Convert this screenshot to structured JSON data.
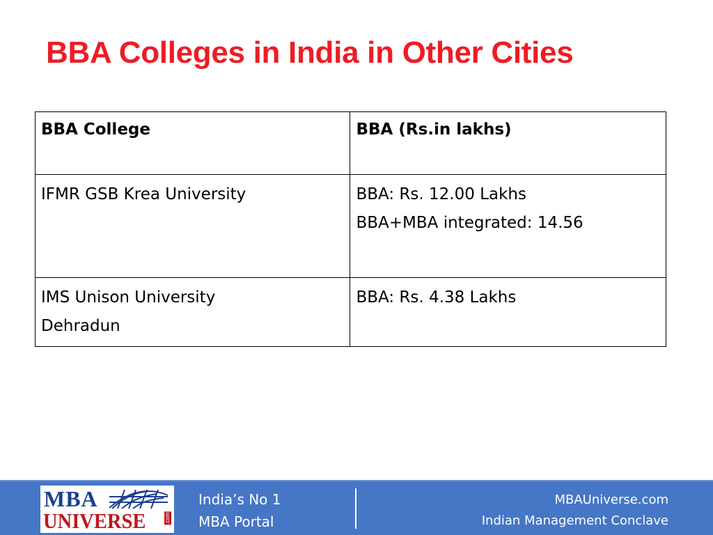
{
  "slide": {
    "title": "BBA Colleges in India in Other Cities"
  },
  "table": {
    "headers": [
      "BBA College",
      "BBA (Rs.in lakhs)"
    ],
    "rows": [
      {
        "college_lines": [
          "IFMR GSB Krea University"
        ],
        "fee_lines": [
          "BBA: Rs. 12.00 Lakhs",
          "BBA+MBA integrated:  14.56"
        ]
      },
      {
        "college_lines": [
          "IMS Unison University",
          "Dehradun"
        ],
        "fee_lines": [
          "BBA: Rs. 4.38  Lakhs"
        ]
      }
    ]
  },
  "footer": {
    "logo_top": "MBA",
    "logo_bottom": "UNIVERSE",
    "logo_suffix": ".com",
    "tagline_lines": [
      "India’s No 1",
      "MBA Portal"
    ],
    "site_lines": [
      "MBAUniverse.com",
      "Indian Management Conclave"
    ],
    "colors": {
      "bar": "#4676c6",
      "title": "#ee1c25",
      "logo_blue": "#1b3f8f",
      "logo_red": "#c0161d"
    }
  }
}
